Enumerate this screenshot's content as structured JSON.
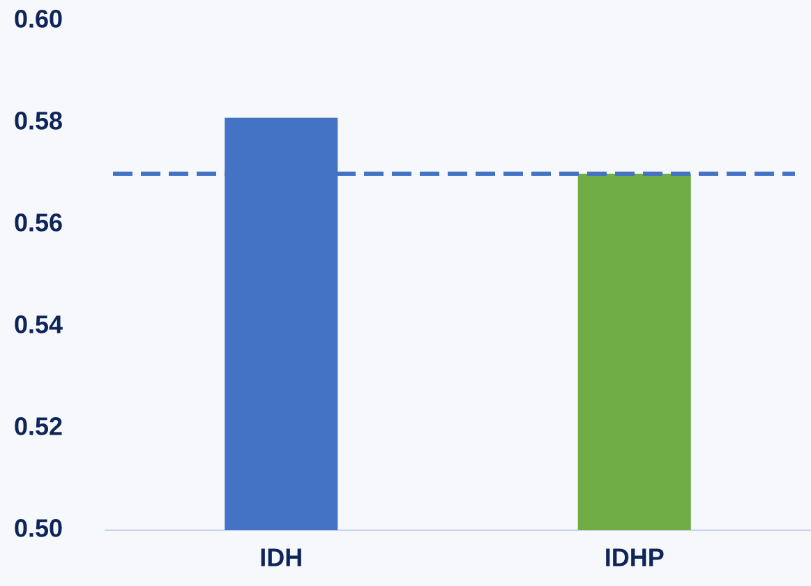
{
  "chart_data": {
    "type": "bar",
    "categories": [
      "IDH",
      "IDHP"
    ],
    "values": [
      0.581,
      0.57
    ],
    "colors": [
      "#4472c4",
      "#70ad47"
    ],
    "ylim": [
      0.5,
      0.6
    ],
    "yticks": [
      {
        "value": 0.5,
        "label": "0.50"
      },
      0.52,
      0.54,
      0.56,
      0.58,
      {
        "value": 0.6,
        "label": "0.60"
      }
    ],
    "grid": false,
    "reference_line": {
      "value": 0.57,
      "color": "#4472c4",
      "style": "dashed"
    }
  }
}
